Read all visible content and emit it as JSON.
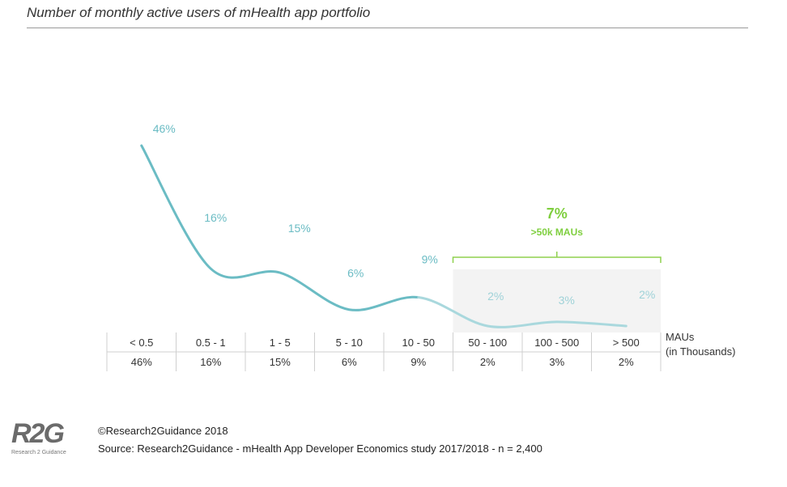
{
  "title": "Number of monthly active users of mHealth app portfolio",
  "chart_data": {
    "type": "line",
    "title": "Number of monthly active users of mHealth app portfolio",
    "categories": [
      "< 0.5",
      "0.5 - 1",
      "1 - 5",
      "5 - 10",
      "10 - 50",
      "50 - 100",
      "100 - 500",
      "> 500"
    ],
    "values": [
      46,
      16,
      15,
      6,
      9,
      2,
      3,
      2
    ],
    "value_labels": [
      "46%",
      "16%",
      "15%",
      "6%",
      "9%",
      "2%",
      "3%",
      "2%"
    ],
    "table_values": [
      "46%",
      "16%",
      "15%",
      "6%",
      "9%",
      "2%",
      "3%",
      "2%"
    ],
    "x_unit_line1": "MAUs",
    "x_unit_line2": "(in Thousands)",
    "ylim": [
      0,
      50
    ],
    "grid": false,
    "highlight": {
      "from_category": "50 - 100",
      "to_category": "> 500",
      "value": "7%",
      "label": ">50k MAUs"
    },
    "colors": {
      "line": "#6bbcc4",
      "line_faded": "#a9d8dd",
      "highlight_bracket": "#8fd14f",
      "highlight_bg": "#f3f3f3"
    }
  },
  "footer": {
    "logo_mark": "R2G",
    "logo_sub": "Research 2 Guidance",
    "copyright": "©Research2Guidance 2018",
    "source": "Source: Research2Guidance - mHealth App Developer Economics study 2017/2018 - n = 2,400"
  }
}
